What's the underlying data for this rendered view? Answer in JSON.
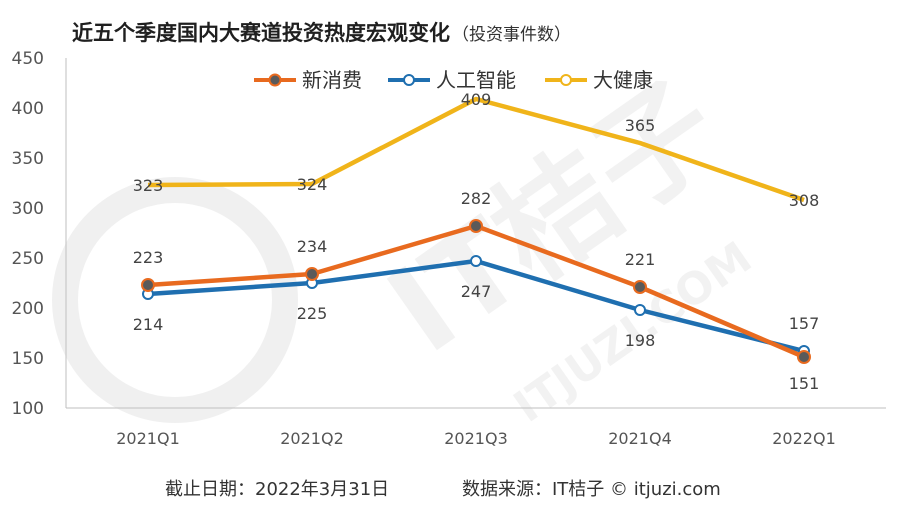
{
  "chart_data": {
    "type": "line",
    "title": "近五个季度国内大赛道投资热度宏观变化",
    "subtitle": "（投资事件数）",
    "categories": [
      "2021Q1",
      "2021Q2",
      "2021Q3",
      "2021Q4",
      "2022Q1"
    ],
    "ylim": [
      100,
      450
    ],
    "yticks": [
      100,
      150,
      200,
      250,
      300,
      350,
      400,
      450
    ],
    "grid": false,
    "legend_position": "top",
    "series": [
      {
        "name": "新消费",
        "values": [
          223,
          234,
          282,
          221,
          151
        ],
        "color": "#E86A1F",
        "marker": "filled-dark"
      },
      {
        "name": "人工智能",
        "values": [
          214,
          225,
          247,
          198,
          157
        ],
        "color": "#1F6FB0",
        "marker": "hollow"
      },
      {
        "name": "大健康",
        "values": [
          323,
          324,
          409,
          365,
          308
        ],
        "color": "#F0B41A",
        "marker": "none"
      }
    ]
  },
  "footer": {
    "date_text": "截止日期：2022年3月31日",
    "source_text": "数据来源：IT桔子 © itjuzi.com"
  },
  "watermark": {
    "text": "IT桔子",
    "site": "ITJUZI.COM"
  }
}
